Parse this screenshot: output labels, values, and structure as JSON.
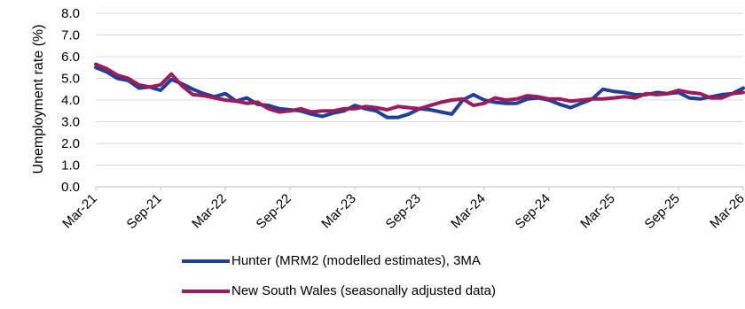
{
  "chart_data": {
    "type": "line",
    "ylabel": "Unemployment rate (%)",
    "xlabel": "",
    "ylim": [
      0,
      8
    ],
    "y_ticks": [
      "0.0",
      "1.0",
      "2.0",
      "3.0",
      "4.0",
      "5.0",
      "6.0",
      "7.0",
      "8.0"
    ],
    "x_ticks": [
      "Mar-21",
      "Sep-21",
      "Mar-22",
      "Sep-22",
      "Mar-23",
      "Sep-23",
      "Mar-24",
      "Sep-24",
      "Mar-25",
      "Sep-25",
      "Mar-26"
    ],
    "x_start": "Mar-21",
    "x_end": "Mar-26",
    "grid": true,
    "legend_position": "bottom",
    "series": [
      {
        "name": "Hunter (MRM2 (modelled estimates), 3MA",
        "color": "#1f3f99",
        "values": [
          5.5,
          5.3,
          5.0,
          4.9,
          4.55,
          4.6,
          4.45,
          4.95,
          4.75,
          4.5,
          4.3,
          4.15,
          4.3,
          3.95,
          4.1,
          3.8,
          3.75,
          3.6,
          3.55,
          3.5,
          3.35,
          3.25,
          3.4,
          3.5,
          3.75,
          3.6,
          3.5,
          3.2,
          3.2,
          3.35,
          3.6,
          3.55,
          3.45,
          3.35,
          4.0,
          4.25,
          4.0,
          3.9,
          3.85,
          3.85,
          4.05,
          4.1,
          4.0,
          3.8,
          3.65,
          3.85,
          4.05,
          4.5,
          4.4,
          4.35,
          4.25,
          4.25,
          4.35,
          4.3,
          4.35,
          4.1,
          4.05,
          4.15,
          4.25,
          4.3,
          4.55
        ]
      },
      {
        "name": "New South Wales (seasonally adjusted data)",
        "color": "#9b1b5b",
        "values": [
          5.65,
          5.45,
          5.15,
          5.0,
          4.7,
          4.6,
          4.7,
          5.2,
          4.65,
          4.25,
          4.2,
          4.1,
          4.0,
          3.95,
          3.85,
          3.9,
          3.6,
          3.45,
          3.5,
          3.6,
          3.45,
          3.5,
          3.5,
          3.6,
          3.6,
          3.7,
          3.65,
          3.55,
          3.7,
          3.65,
          3.6,
          3.75,
          3.9,
          4.0,
          4.05,
          3.75,
          3.85,
          4.1,
          4.0,
          4.05,
          4.2,
          4.15,
          4.05,
          4.05,
          3.95,
          4.0,
          4.05,
          4.05,
          4.1,
          4.15,
          4.1,
          4.3,
          4.25,
          4.3,
          4.45,
          4.35,
          4.3,
          4.1,
          4.1,
          4.3,
          4.35
        ]
      }
    ]
  }
}
